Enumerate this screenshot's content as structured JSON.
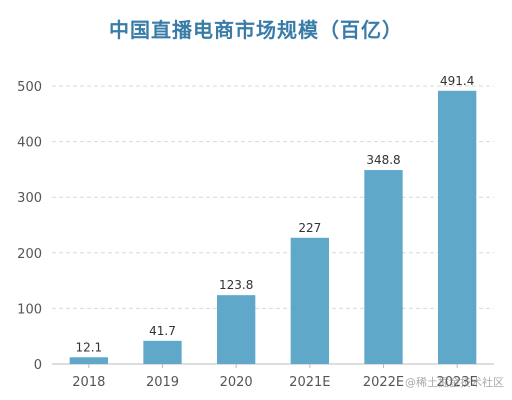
{
  "chart_data": {
    "type": "bar",
    "title": "中国直播电商市场规模（百亿）",
    "categories": [
      "2018",
      "2019",
      "2020",
      "2021E",
      "2022E",
      "2023E"
    ],
    "values": [
      12.1,
      41.7,
      123.8,
      227,
      348.8,
      491.4
    ],
    "value_labels": [
      "12.1",
      "41.7",
      "123.8",
      "227",
      "348.8",
      "491.4"
    ],
    "ylim": [
      0,
      500
    ],
    "yticks": [
      0,
      100,
      200,
      300,
      400,
      500
    ],
    "grid": true,
    "legend": "none",
    "colors": {
      "bar": "#5fa8c9",
      "title": "#3a7ca8",
      "grid": "#d9d9d9",
      "axis": "#bbbbbb"
    }
  },
  "watermark": "@稀土掘金技术社区"
}
